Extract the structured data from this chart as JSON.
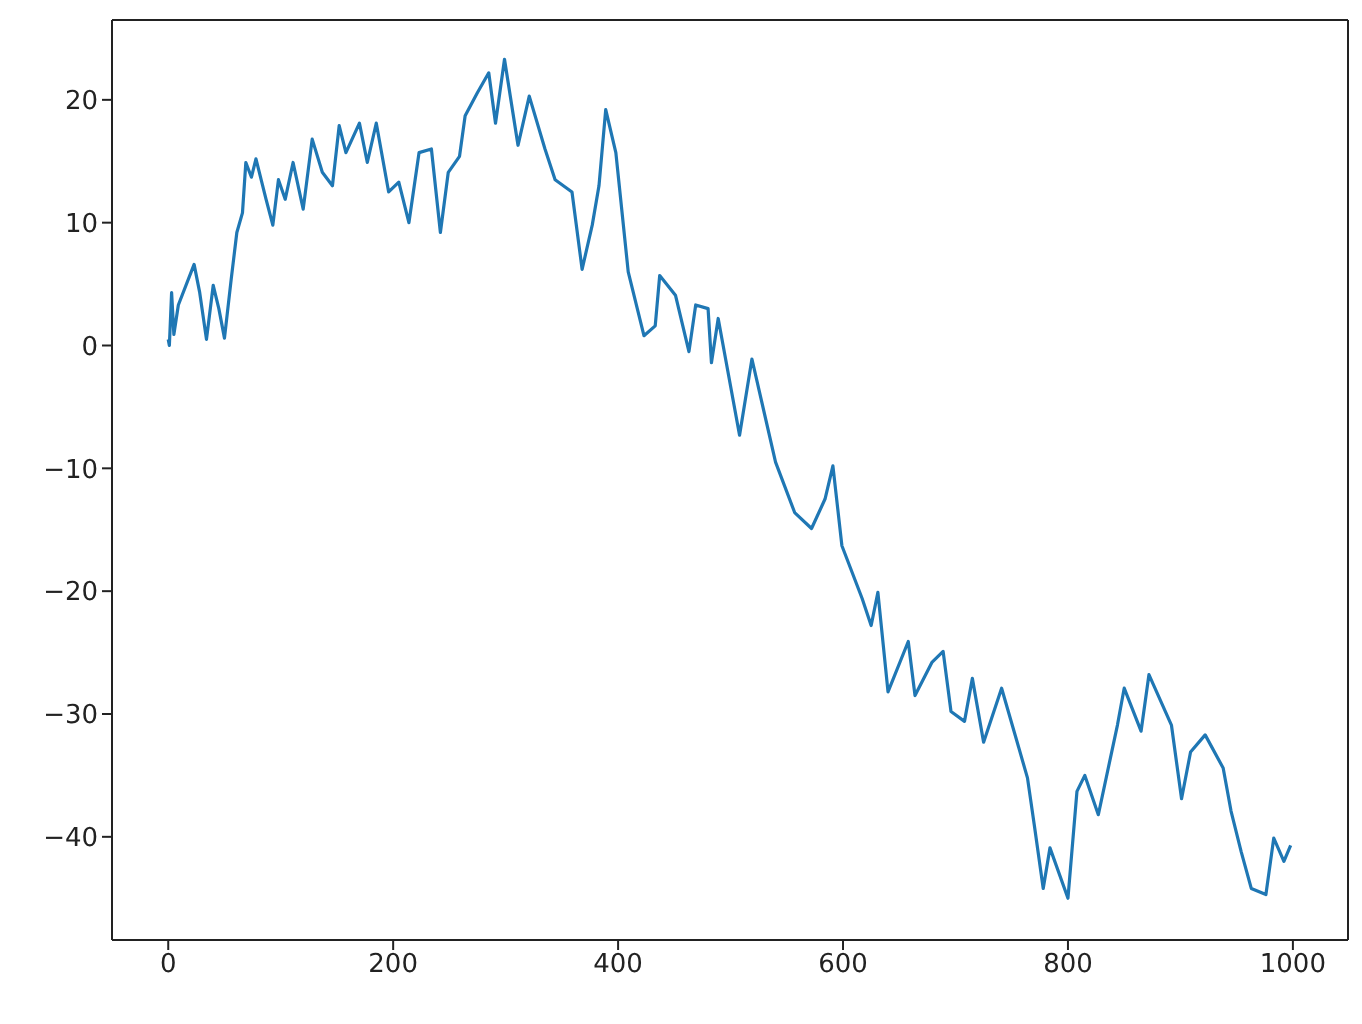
{
  "chart_data": {
    "type": "line",
    "x": [
      0,
      1,
      3,
      5,
      9,
      23,
      28,
      34,
      40,
      45,
      50,
      56,
      61,
      66,
      69,
      74,
      78,
      87,
      93,
      98,
      104,
      111,
      120,
      128,
      137,
      146,
      152,
      158,
      170,
      177,
      185,
      196,
      205,
      214,
      223,
      234,
      242,
      249,
      259,
      264,
      275,
      285,
      291,
      299,
      311,
      321,
      335,
      344,
      359,
      368,
      377,
      383,
      389,
      398,
      409,
      423,
      433,
      437,
      451,
      463,
      469,
      480,
      483,
      489,
      508,
      519,
      540,
      557,
      572,
      584,
      591,
      599,
      617,
      625,
      631,
      640,
      658,
      664,
      679,
      689,
      696,
      708,
      715,
      725,
      741,
      764,
      770,
      778,
      784,
      800,
      808,
      815,
      827,
      844,
      850,
      865,
      872,
      892,
      901,
      909,
      922,
      938,
      945,
      954,
      963,
      976,
      983,
      992,
      998
    ],
    "series": [
      {
        "color": "#1f77b4",
        "values": [
          0.5,
          0,
          4.3,
          0.9,
          3.3,
          6.6,
          4.3,
          0.5,
          4.9,
          3,
          0.6,
          5.4,
          9.2,
          10.8,
          14.9,
          13.7,
          15.2,
          11.9,
          9.8,
          13.5,
          11.9,
          14.9,
          11.1,
          16.8,
          14.1,
          13,
          17.9,
          15.7,
          18.1,
          14.9,
          18.1,
          12.5,
          13.3,
          10,
          15.7,
          16,
          9.2,
          14.1,
          15.4,
          18.7,
          20.6,
          22.2,
          18.1,
          23.3,
          16.3,
          20.3,
          16,
          13.5,
          12.5,
          6.2,
          9.8,
          13,
          19.2,
          15.7,
          6,
          0.8,
          1.6,
          5.7,
          4.1,
          -0.5,
          3.3,
          3,
          -1.4,
          2.2,
          -7.3,
          -1.1,
          -9.5,
          -13.6,
          -14.9,
          -12.5,
          -9.8,
          -16.3,
          -20.6,
          -22.8,
          -20.1,
          -28.2,
          -24.1,
          -28.5,
          -25.8,
          -24.9,
          -29.8,
          -30.6,
          -27.1,
          -32.3,
          -27.9,
          -35.2,
          -39,
          -44.2,
          -40.9,
          -45,
          -36.3,
          -35,
          -38.2,
          -30.9,
          -27.9,
          -31.4,
          -26.8,
          -30.9,
          -36.9,
          -33.1,
          -31.7,
          -34.4,
          -37.9,
          -41.2,
          -44.2,
          -44.7,
          -40.1,
          -42,
          -40.7
        ]
      }
    ],
    "xlim": [
      -50,
      1049
    ],
    "ylim": [
      -48.4,
      26.5
    ],
    "xticks": [
      0,
      200,
      400,
      600,
      800,
      1000
    ],
    "yticks": [
      -40,
      -30,
      -20,
      -10,
      0,
      10,
      20
    ],
    "grid": false,
    "marker": "none",
    "line_style": "solid"
  }
}
